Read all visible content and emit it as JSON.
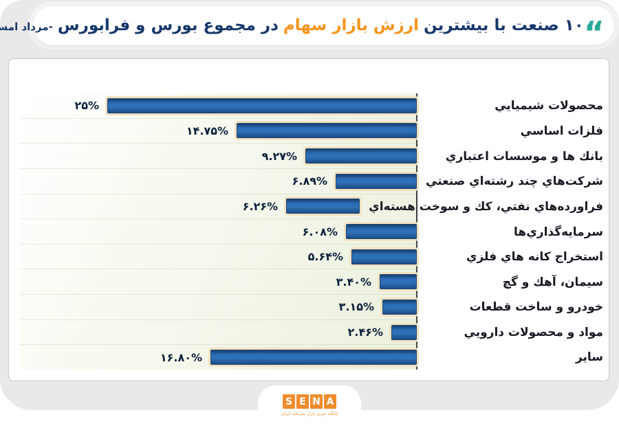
{
  "header": {
    "quote_open": "“",
    "quote_close": "”",
    "title_start": "۱۰ صنعت با بیشترین",
    "title_highlight": "ارزش بازار سهام",
    "title_middle": "در مجموع بورس و فرابورس",
    "title_suffix": "-مرداد امسال"
  },
  "chart_data": {
    "type": "bar",
    "orientation": "horizontal",
    "direction": "rtl",
    "title": "۱۰ صنعت با بیشترین ارزش بازار سهام در مجموع بورس و فرابورس - مرداد امسال",
    "xlim": [
      0,
      25
    ],
    "grid": true,
    "legend": "none",
    "categories": [
      "محصولات شيميايي",
      "فلزات اساسي",
      "بانك ها و موسسات اعتباري",
      "شركت‌هاي چند رشته‌اي صنعتي",
      "فراورده‌هاي نفتي، كك و سوخت هسته‌اي",
      "سرمايه‌گذاري‌ها",
      "استخراج كانه هاي فلزي",
      "سيمان، آهك و گچ",
      "خودرو و ساخت قطعات",
      "مواد و محصولات دارويي",
      "ساير"
    ],
    "values": [
      25,
      14.75,
      9.27,
      6.89,
      6.26,
      6.08,
      5.64,
      3.4,
      3.15,
      2.46,
      16.8
    ],
    "value_labels": [
      "۲۵%",
      "۱۴.۷۵%",
      "۹.۲۷%",
      "۶.۸۹%",
      "۶.۲۶%",
      "۶.۰۸%",
      "۵.۶۴%",
      "۳.۴۰%",
      "۳.۱۵%",
      "۲.۴۶%",
      "۱۶.۸۰%"
    ]
  },
  "colors": {
    "teal_accent": "#2fa89c",
    "navy_title": "#17386b",
    "orange_highlight": "#f7941d",
    "bar_fill": "#2a6cb3",
    "bar_glow": "#f2e2c2",
    "panel_bg": "#e9e9e9"
  },
  "footer": {
    "logo_letters": [
      "S",
      "E",
      "N",
      "A"
    ],
    "tagline": "پایگاه خبری بازار سرمایه ایران"
  }
}
